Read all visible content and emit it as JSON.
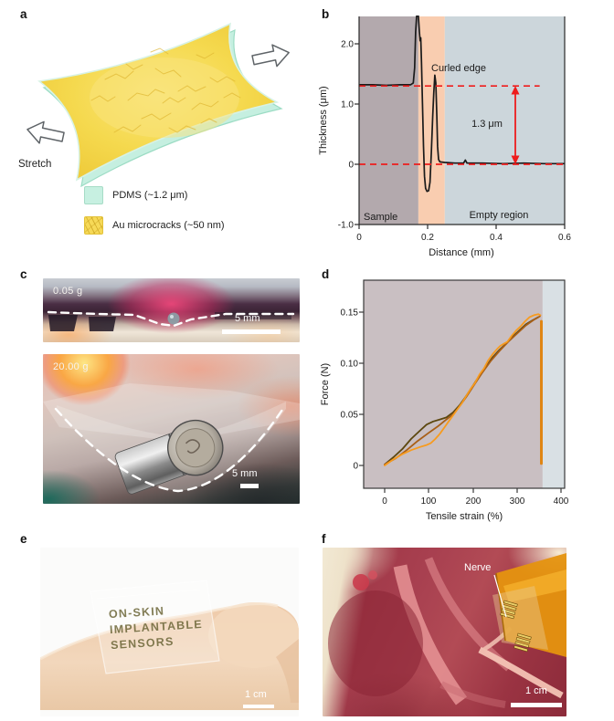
{
  "panel_a": {
    "label": "a",
    "stretch_label": "Stretch",
    "legend": [
      {
        "name": "pdms",
        "label": "PDMS (~1.2 μm)",
        "color": "#c7f0e1"
      },
      {
        "name": "au-microcracks",
        "label": "Au microcracks (~50 nm)",
        "color": "#f6d957"
      }
    ]
  },
  "panel_b": {
    "label": "b",
    "chart_data": {
      "type": "line",
      "xlabel": "Distance (mm)",
      "ylabel": "Thickness (μm)",
      "xlim": [
        0,
        0.6
      ],
      "ylim": [
        -1.0,
        2.45
      ],
      "x_ticks": [
        "0",
        "0.2",
        "0.4",
        "0.6"
      ],
      "y_ticks": [
        "2.0",
        "1.0",
        "0",
        "-1.0"
      ],
      "regions": [
        {
          "label": "Sample",
          "x0": 0,
          "x1": 0.173,
          "color": "#b3a9ad"
        },
        {
          "label": "Curled edge",
          "x0": 0.173,
          "x1": 0.25,
          "color": "#f9cdb0"
        },
        {
          "label": "Empty region",
          "x0": 0.25,
          "x1": 0.6,
          "color": "#ccd6db"
        }
      ],
      "reference_lines": [
        {
          "y": 1.3,
          "x0": 0,
          "x1": 0.527,
          "color": "#ee1c1c"
        },
        {
          "y": 0,
          "x0": 0,
          "x1": 0.6,
          "color": "#ee1c1c"
        }
      ],
      "annotations": {
        "curled_edge": "Curled edge",
        "gap": "1.3 μm",
        "sample": "Sample",
        "empty": "Empty region"
      },
      "series": [
        {
          "name": "thickness-profile",
          "color": "#1a1a1a",
          "points": [
            [
              0,
              1.32
            ],
            [
              0.04,
              1.32
            ],
            [
              0.08,
              1.31
            ],
            [
              0.12,
              1.32
            ],
            [
              0.15,
              1.32
            ],
            [
              0.158,
              1.35
            ],
            [
              0.162,
              1.6
            ],
            [
              0.165,
              2.2
            ],
            [
              0.168,
              2.46
            ],
            [
              0.173,
              2.46
            ],
            [
              0.176,
              2.2
            ],
            [
              0.178,
              2.05
            ],
            [
              0.18,
              2.1
            ],
            [
              0.182,
              1.7
            ],
            [
              0.185,
              1.0
            ],
            [
              0.188,
              0.3
            ],
            [
              0.191,
              -0.2
            ],
            [
              0.194,
              -0.4
            ],
            [
              0.198,
              -0.45
            ],
            [
              0.203,
              -0.44
            ],
            [
              0.207,
              -0.3
            ],
            [
              0.211,
              0.2
            ],
            [
              0.215,
              0.8
            ],
            [
              0.218,
              1.2
            ],
            [
              0.221,
              1.48
            ],
            [
              0.224,
              1.35
            ],
            [
              0.227,
              0.8
            ],
            [
              0.229,
              0.3
            ],
            [
              0.232,
              0.08
            ],
            [
              0.236,
              0.04
            ],
            [
              0.25,
              0.03
            ],
            [
              0.28,
              0.02
            ],
            [
              0.305,
              0.02
            ],
            [
              0.31,
              0.07
            ],
            [
              0.315,
              0.02
            ],
            [
              0.36,
              0.02
            ],
            [
              0.42,
              0.01
            ],
            [
              0.48,
              0.02
            ],
            [
              0.54,
              0.01
            ],
            [
              0.6,
              0.01
            ]
          ]
        }
      ]
    }
  },
  "panel_c": {
    "label": "c",
    "photos": [
      {
        "name": "droplet-0.05g",
        "weight_label": "0.05 g",
        "scale_label": "5 mm"
      },
      {
        "name": "weight-20.00g",
        "weight_label": "20.00 g",
        "scale_label": "5 mm"
      }
    ]
  },
  "panel_d": {
    "label": "d",
    "chart_data": {
      "type": "line",
      "xlabel": "Tensile strain (%)",
      "ylabel": "Force (N)",
      "xlim": [
        -47,
        407
      ],
      "ylim": [
        -0.022,
        0.181
      ],
      "x_ticks": [
        "0",
        "100",
        "200",
        "300",
        "400"
      ],
      "y_ticks": [
        "0.15",
        "0.10",
        "0.05",
        "0"
      ],
      "regions": [
        {
          "label": "",
          "x0": -47,
          "x1": 358,
          "color": "#c9bfc2"
        },
        {
          "label": "",
          "x0": 358,
          "x1": 407,
          "color": "#d9e0e4"
        }
      ],
      "series": [
        {
          "name": "sample-1",
          "color": "#5c470f",
          "points": [
            [
              0,
              0.001
            ],
            [
              20,
              0.008
            ],
            [
              40,
              0.016
            ],
            [
              60,
              0.026
            ],
            [
              80,
              0.034
            ],
            [
              95,
              0.04
            ],
            [
              110,
              0.043
            ],
            [
              125,
              0.045
            ],
            [
              140,
              0.047
            ],
            [
              155,
              0.052
            ],
            [
              170,
              0.059
            ],
            [
              185,
              0.068
            ],
            [
              200,
              0.078
            ],
            [
              215,
              0.088
            ],
            [
              230,
              0.097
            ],
            [
              245,
              0.106
            ],
            [
              260,
              0.113
            ],
            [
              275,
              0.119
            ],
            [
              290,
              0.126
            ],
            [
              305,
              0.132
            ],
            [
              320,
              0.138
            ],
            [
              335,
              0.142
            ],
            [
              348,
              0.145
            ]
          ]
        },
        {
          "name": "sample-2",
          "color": "#a85f17",
          "points": [
            [
              0,
              0.001
            ],
            [
              25,
              0.007
            ],
            [
              50,
              0.015
            ],
            [
              75,
              0.024
            ],
            [
              100,
              0.032
            ],
            [
              120,
              0.038
            ],
            [
              140,
              0.045
            ],
            [
              155,
              0.05
            ],
            [
              170,
              0.058
            ],
            [
              185,
              0.067
            ],
            [
              200,
              0.077
            ],
            [
              220,
              0.09
            ],
            [
              240,
              0.102
            ],
            [
              260,
              0.112
            ],
            [
              280,
              0.121
            ],
            [
              300,
              0.129
            ],
            [
              320,
              0.137
            ],
            [
              340,
              0.143
            ],
            [
              352,
              0.146
            ]
          ]
        },
        {
          "name": "sample-3",
          "color": "#f79b1e",
          "points": [
            [
              0,
              0.0
            ],
            [
              20,
              0.006
            ],
            [
              40,
              0.011
            ],
            [
              60,
              0.015
            ],
            [
              80,
              0.018
            ],
            [
              95,
              0.02
            ],
            [
              105,
              0.022
            ],
            [
              115,
              0.026
            ],
            [
              125,
              0.031
            ],
            [
              135,
              0.037
            ],
            [
              145,
              0.043
            ],
            [
              155,
              0.049
            ],
            [
              165,
              0.055
            ],
            [
              175,
              0.061
            ],
            [
              185,
              0.068
            ],
            [
              195,
              0.075
            ],
            [
              205,
              0.081
            ],
            [
              215,
              0.089
            ],
            [
              225,
              0.095
            ],
            [
              235,
              0.103
            ],
            [
              245,
              0.109
            ],
            [
              255,
              0.114
            ],
            [
              262,
              0.117
            ],
            [
              270,
              0.119
            ],
            [
              278,
              0.121
            ],
            [
              288,
              0.127
            ],
            [
              298,
              0.132
            ],
            [
              308,
              0.136
            ],
            [
              318,
              0.141
            ],
            [
              328,
              0.145
            ],
            [
              338,
              0.147
            ],
            [
              348,
              0.148
            ],
            [
              353,
              0.147
            ]
          ]
        },
        {
          "name": "rupture-drop",
          "color": "#e08614",
          "width": 3,
          "points": [
            [
              355,
              0.141
            ],
            [
              355,
              0.002
            ]
          ]
        }
      ]
    }
  },
  "panel_e": {
    "label": "e",
    "film_lines": [
      "ON-SKIN",
      "IMPLANTABLE",
      "SENSORS"
    ],
    "scale_label": "1 cm"
  },
  "panel_f": {
    "label": "f",
    "annotation": "Nerve",
    "scale_label": "1 cm"
  }
}
